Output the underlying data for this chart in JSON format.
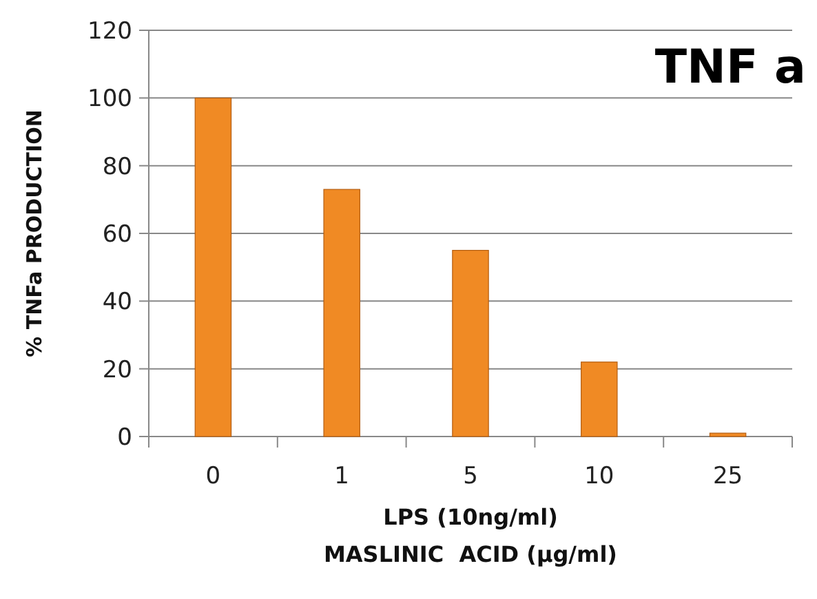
{
  "chart_data": {
    "type": "bar",
    "title": "TNF a",
    "xlabel": "LPS (10ng/ml)\nMASLINIC  ACID (µg/ml)",
    "ylabel": "% TNFa PRODUCTION",
    "categories": [
      "0",
      "1",
      "5",
      "10",
      "25"
    ],
    "values": [
      100,
      73,
      55,
      22,
      1
    ],
    "color": "#f08a24",
    "ylim": [
      0,
      120
    ],
    "yticks": [
      0,
      20,
      40,
      60,
      80,
      100,
      120
    ],
    "grid": "y"
  }
}
